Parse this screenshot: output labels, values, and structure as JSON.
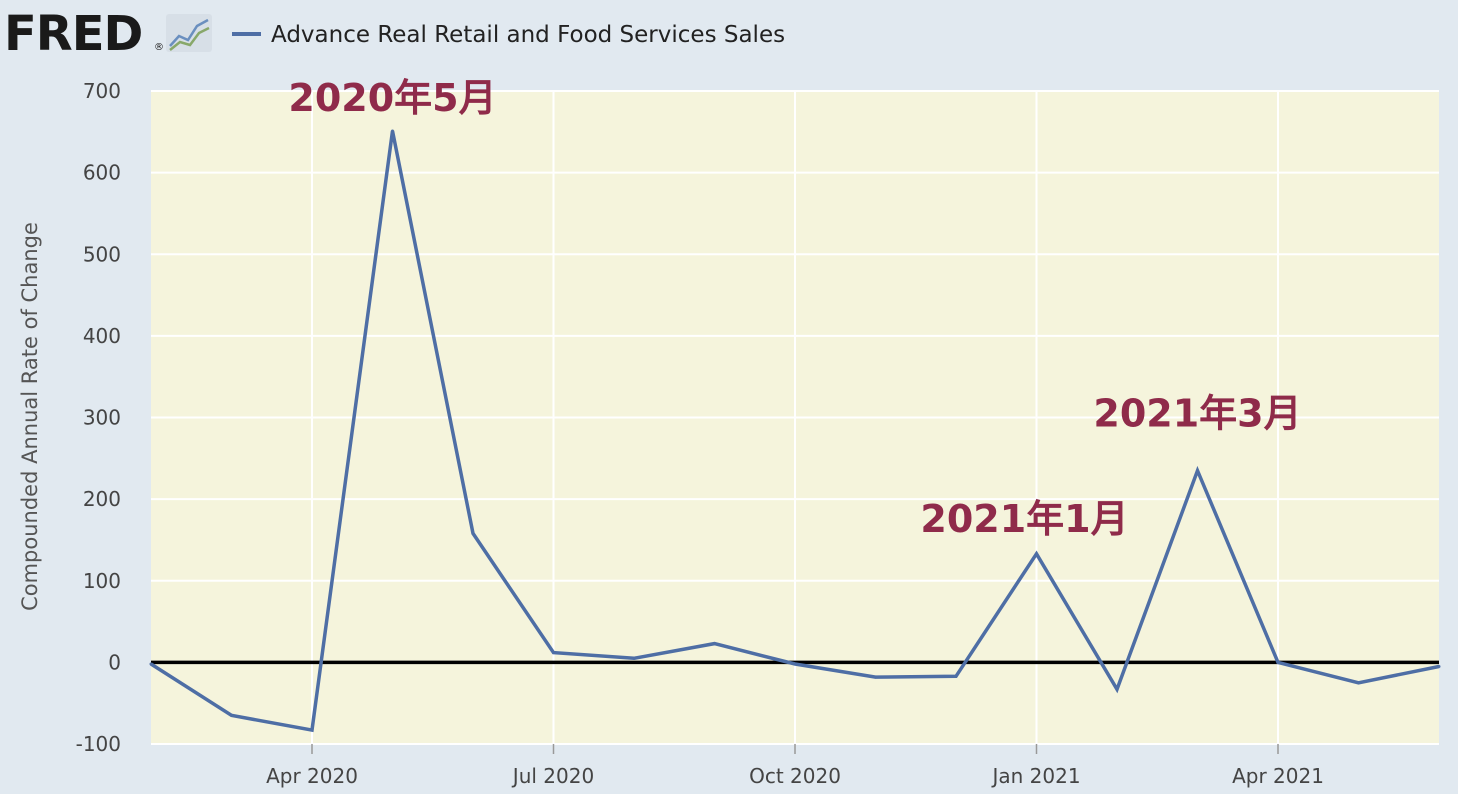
{
  "header": {
    "logo_text": "FRED",
    "logo_mark": "®",
    "logo_icon": "fred-line-chart-icon",
    "legend_label": "Advance Real Retail and Food Services Sales"
  },
  "colors": {
    "background": "#e1e9f0",
    "plot_bg": "#f5f4dc",
    "series": "#4e6ea5",
    "zero_line": "#000000",
    "annotation": "#8f2b4a"
  },
  "chart_data": {
    "type": "line",
    "title": "",
    "xlabel": "",
    "ylabel": "Compounded Annual Rate of Change",
    "ylim": [
      -100,
      700
    ],
    "yticks": [
      "700",
      "600",
      "500",
      "400",
      "300",
      "200",
      "100",
      "0",
      "-100"
    ],
    "xticks": [
      "Apr 2020",
      "Jul 2020",
      "Oct 2020",
      "Jan 2021",
      "Apr 2021"
    ],
    "grid": true,
    "legend_position": "top-left",
    "series": [
      {
        "name": "Advance Real Retail and Food Services Sales",
        "x": [
          "2020-02",
          "2020-03",
          "2020-04",
          "2020-05",
          "2020-06",
          "2020-07",
          "2020-08",
          "2020-09",
          "2020-10",
          "2020-11",
          "2020-12",
          "2021-01",
          "2021-02",
          "2021-03",
          "2021-04",
          "2021-05",
          "2021-06"
        ],
        "values": [
          -2,
          -65,
          -83,
          651,
          158,
          12,
          5,
          23,
          -2,
          -18,
          -17,
          133,
          -33,
          235,
          0,
          -25,
          -5
        ]
      }
    ],
    "reference_line": 0,
    "annotations": [
      {
        "text": "2020年5月",
        "x": "2020-05"
      },
      {
        "text": "2021年1月",
        "x": "2021-01"
      },
      {
        "text": "2021年3月",
        "x": "2021-03"
      }
    ]
  }
}
